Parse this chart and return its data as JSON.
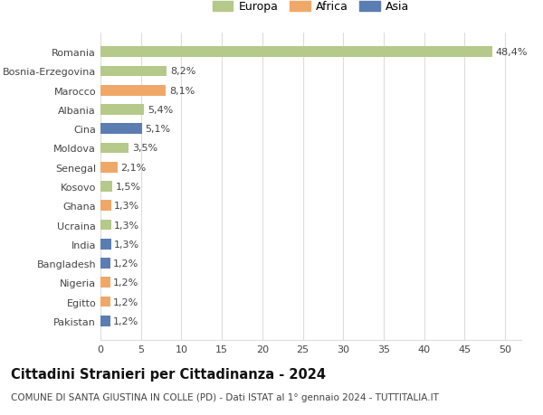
{
  "categories": [
    "Pakistan",
    "Egitto",
    "Nigeria",
    "Bangladesh",
    "India",
    "Ucraina",
    "Ghana",
    "Kosovo",
    "Senegal",
    "Moldova",
    "Cina",
    "Albania",
    "Marocco",
    "Bosnia-Erzegovina",
    "Romania"
  ],
  "values": [
    1.2,
    1.2,
    1.2,
    1.2,
    1.3,
    1.3,
    1.3,
    1.5,
    2.1,
    3.5,
    5.1,
    5.4,
    8.1,
    8.2,
    48.4
  ],
  "colors": [
    "#5b7db1",
    "#f0a868",
    "#f0a868",
    "#5b7db1",
    "#5b7db1",
    "#b5c98a",
    "#f0a868",
    "#b5c98a",
    "#f0a868",
    "#b5c98a",
    "#5b7db1",
    "#b5c98a",
    "#f0a868",
    "#b5c98a",
    "#b5c98a"
  ],
  "labels": [
    "1,2%",
    "1,2%",
    "1,2%",
    "1,2%",
    "1,3%",
    "1,3%",
    "1,3%",
    "1,5%",
    "2,1%",
    "3,5%",
    "5,1%",
    "5,4%",
    "8,1%",
    "8,2%",
    "48,4%"
  ],
  "legend_labels": [
    "Europa",
    "Africa",
    "Asia"
  ],
  "legend_colors": [
    "#b5c98a",
    "#f0a868",
    "#5b7db1"
  ],
  "title": "Cittadini Stranieri per Cittadinanza - 2024",
  "subtitle": "COMUNE DI SANTA GIUSTINA IN COLLE (PD) - Dati ISTAT al 1° gennaio 2024 - TUTTITALIA.IT",
  "xlim": [
    0,
    52
  ],
  "xticks": [
    0,
    5,
    10,
    15,
    20,
    25,
    30,
    35,
    40,
    45,
    50
  ],
  "background_color": "#ffffff",
  "grid_color": "#dddddd",
  "bar_height": 0.55,
  "label_fontsize": 8,
  "tick_fontsize": 8,
  "title_fontsize": 10.5,
  "subtitle_fontsize": 7.5
}
